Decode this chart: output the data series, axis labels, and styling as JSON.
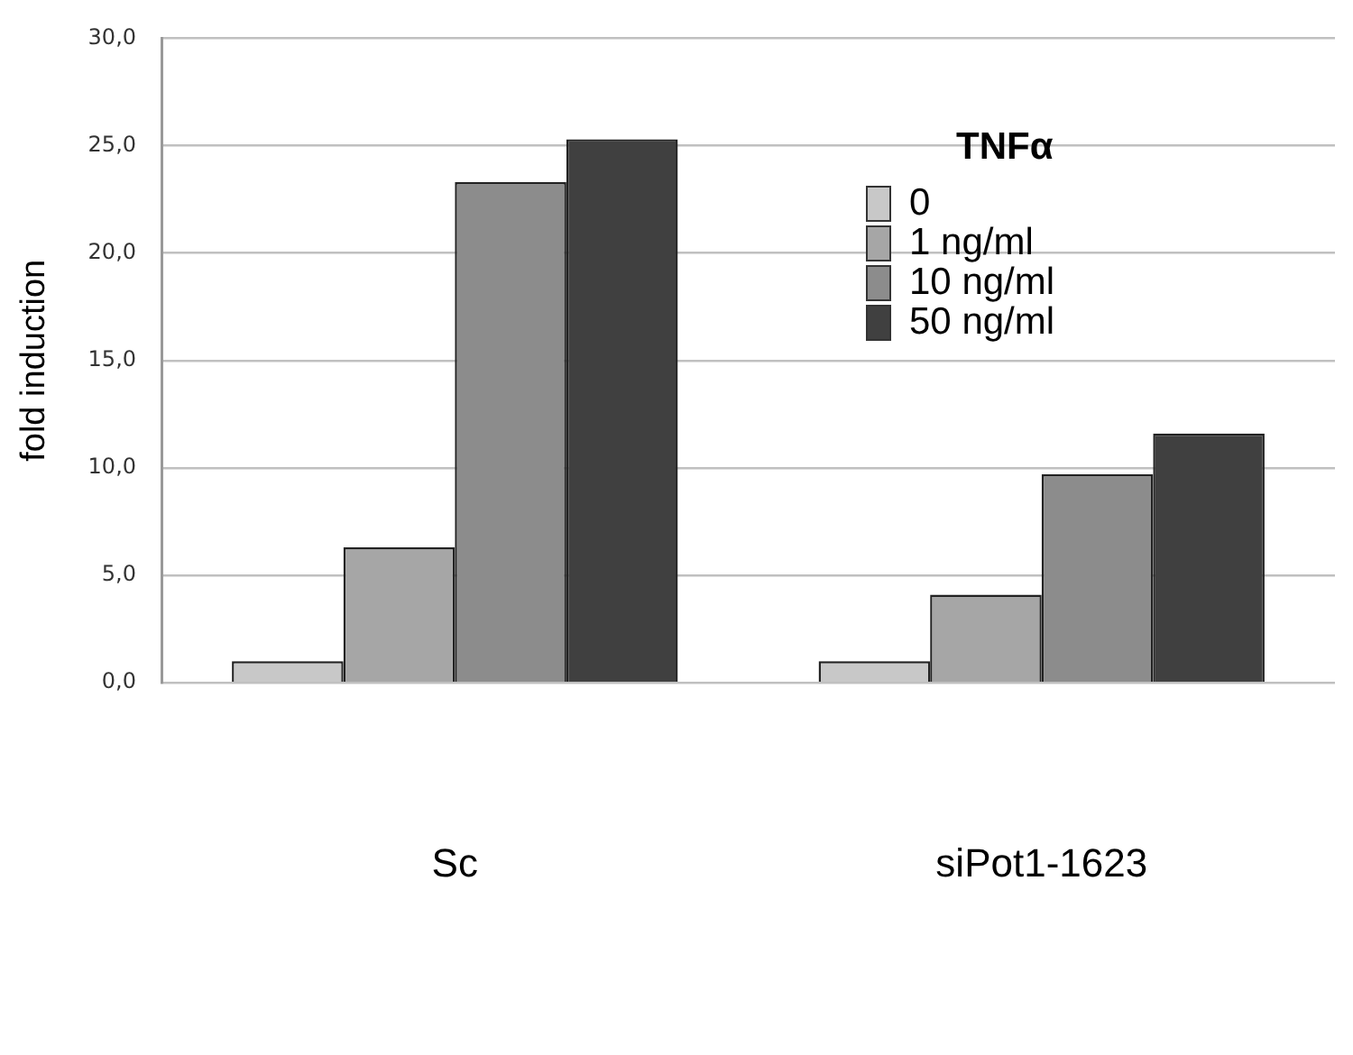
{
  "chart_data": {
    "type": "bar",
    "categories": [
      "Sc",
      "siPot1-1623"
    ],
    "ylabel": "fold induction",
    "legend_title": "TNFα",
    "series": [
      {
        "name": "0",
        "color": "#c8c8c8",
        "values": [
          1.0,
          1.0
        ]
      },
      {
        "name": "1 ng/ml",
        "color": "#a6a6a6",
        "values": [
          6.3,
          4.1
        ]
      },
      {
        "name": "10 ng/ml",
        "color": "#8c8c8c",
        "values": [
          23.3,
          9.7
        ]
      },
      {
        "name": "50 ng/ml",
        "color": "#404040",
        "values": [
          25.3,
          11.6
        ]
      }
    ],
    "ylim": [
      0,
      30
    ],
    "yticks": [
      {
        "value": 0,
        "label": "0,0"
      },
      {
        "value": 5,
        "label": "5,0"
      },
      {
        "value": 10,
        "label": "10,0"
      },
      {
        "value": 15,
        "label": "15,0"
      },
      {
        "value": 20,
        "label": "20,0"
      },
      {
        "value": 25,
        "label": "25,0"
      },
      {
        "value": 30,
        "label": "30,0"
      }
    ],
    "grid": "y",
    "legend": "top right"
  }
}
